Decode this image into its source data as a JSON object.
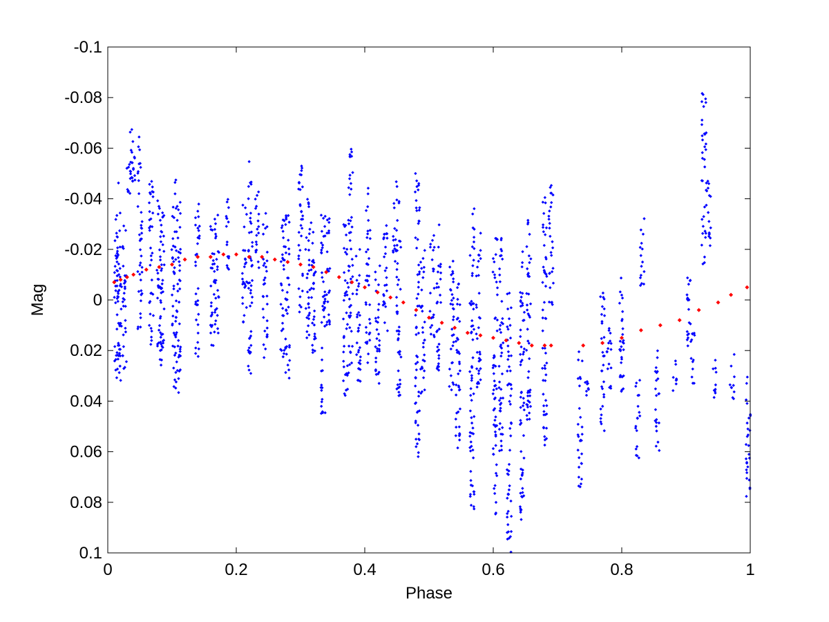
{
  "chart_data": {
    "type": "scatter",
    "title": "",
    "xlabel": "Phase",
    "ylabel": "Mag",
    "xlim": [
      0,
      1
    ],
    "ylim": [
      -0.1,
      0.1
    ],
    "y_reversed": true,
    "grid": false,
    "legend": "none",
    "x_ticks": [
      0,
      0.2,
      0.4,
      0.6,
      0.8,
      1
    ],
    "x_tick_labels": [
      "0",
      "0.2",
      "0.4",
      "0.6",
      "0.8",
      "1"
    ],
    "y_ticks": [
      -0.1,
      -0.08,
      -0.06,
      -0.04,
      -0.02,
      0,
      0.02,
      0.04,
      0.06,
      0.08,
      0.1
    ],
    "y_tick_labels": [
      "-0.1",
      "-0.08",
      "-0.06",
      "-0.04",
      "-0.02",
      "0",
      "0.02",
      "0.04",
      "0.06",
      "0.08",
      "0.1"
    ],
    "observations": {
      "color": "#0000ff",
      "clusters": [
        [
          0.013,
          -0.034,
          0.031
        ],
        [
          0.018,
          -0.047,
          0.032
        ],
        [
          0.026,
          -0.03,
          0.028
        ],
        [
          0.033,
          -0.06,
          -0.042
        ],
        [
          0.037,
          -0.07,
          -0.046
        ],
        [
          0.04,
          -0.06,
          -0.045
        ],
        [
          0.05,
          -0.065,
          0.012
        ],
        [
          0.068,
          -0.05,
          0.02
        ],
        [
          0.08,
          -0.04,
          0.028
        ],
        [
          0.085,
          -0.035,
          0.025
        ],
        [
          0.103,
          -0.049,
          0.035
        ],
        [
          0.11,
          -0.04,
          0.039
        ],
        [
          0.14,
          -0.038,
          0.026
        ],
        [
          0.163,
          -0.031,
          0.023
        ],
        [
          0.17,
          -0.035,
          0.015
        ],
        [
          0.185,
          -0.042,
          -0.011
        ],
        [
          0.213,
          -0.04,
          0.01
        ],
        [
          0.222,
          -0.055,
          0.032
        ],
        [
          0.232,
          -0.045,
          -0.011
        ],
        [
          0.245,
          -0.035,
          0.025
        ],
        [
          0.272,
          -0.032,
          0.024
        ],
        [
          0.28,
          -0.035,
          0.032
        ],
        [
          0.3,
          -0.058,
          0.005
        ],
        [
          0.311,
          -0.04,
          0.02
        ],
        [
          0.32,
          -0.032,
          0.025
        ],
        [
          0.335,
          -0.034,
          0.055
        ],
        [
          0.343,
          -0.033,
          0.01
        ],
        [
          0.37,
          -0.03,
          0.04
        ],
        [
          0.378,
          -0.062,
          0.03
        ],
        [
          0.39,
          -0.024,
          0.035
        ],
        [
          0.405,
          -0.046,
          0.025
        ],
        [
          0.42,
          -0.02,
          0.035
        ],
        [
          0.432,
          -0.032,
          0.02
        ],
        [
          0.447,
          -0.048,
          -0.015
        ],
        [
          0.453,
          -0.04,
          0.038
        ],
        [
          0.482,
          -0.052,
          0.062
        ],
        [
          0.49,
          -0.02,
          0.038
        ],
        [
          0.505,
          -0.028,
          0.015
        ],
        [
          0.515,
          -0.03,
          0.028
        ],
        [
          0.535,
          -0.02,
          0.042
        ],
        [
          0.545,
          -0.015,
          0.06
        ],
        [
          0.567,
          -0.037,
          0.086
        ],
        [
          0.577,
          -0.028,
          0.035
        ],
        [
          0.603,
          -0.025,
          0.087
        ],
        [
          0.612,
          -0.026,
          0.06
        ],
        [
          0.625,
          -0.005,
          0.1
        ],
        [
          0.645,
          -0.02,
          0.088
        ],
        [
          0.655,
          -0.035,
          0.05
        ],
        [
          0.68,
          -0.045,
          0.058
        ],
        [
          0.69,
          -0.049,
          0.002
        ],
        [
          0.735,
          0.02,
          0.074
        ],
        [
          0.745,
          0.03,
          0.038
        ],
        [
          0.77,
          -0.005,
          0.052
        ],
        [
          0.78,
          0.01,
          0.04
        ],
        [
          0.8,
          -0.018,
          0.037
        ],
        [
          0.825,
          0.03,
          0.064
        ],
        [
          0.832,
          -0.034,
          -0.005
        ],
        [
          0.855,
          0.02,
          0.062
        ],
        [
          0.883,
          0.022,
          0.038
        ],
        [
          0.905,
          -0.017,
          0.02
        ],
        [
          0.91,
          0.01,
          0.035
        ],
        [
          0.928,
          -0.082,
          -0.014
        ],
        [
          0.935,
          -0.052,
          -0.02
        ],
        [
          0.945,
          0.022,
          0.042
        ],
        [
          0.972,
          0.02,
          0.04
        ],
        [
          0.997,
          0.028,
          0.079
        ]
      ]
    },
    "model_fit": {
      "color": "#ff0000",
      "x": [
        0.01,
        0.02,
        0.03,
        0.04,
        0.06,
        0.08,
        0.1,
        0.12,
        0.14,
        0.16,
        0.18,
        0.2,
        0.22,
        0.24,
        0.26,
        0.28,
        0.3,
        0.32,
        0.34,
        0.36,
        0.38,
        0.4,
        0.42,
        0.44,
        0.46,
        0.48,
        0.5,
        0.52,
        0.54,
        0.56,
        0.58,
        0.6,
        0.62,
        0.64,
        0.66,
        0.68,
        0.69,
        0.74,
        0.77,
        0.8,
        0.83,
        0.86,
        0.89,
        0.92,
        0.95,
        0.97,
        0.995
      ],
      "y": [
        -0.007,
        -0.008,
        -0.009,
        -0.01,
        -0.012,
        -0.013,
        -0.014,
        -0.016,
        -0.017,
        -0.017,
        -0.018,
        -0.018,
        -0.017,
        -0.017,
        -0.016,
        -0.015,
        -0.014,
        -0.013,
        -0.011,
        -0.009,
        -0.007,
        -0.005,
        -0.003,
        -0.001,
        0.001,
        0.004,
        0.007,
        0.009,
        0.011,
        0.013,
        0.014,
        0.015,
        0.016,
        0.017,
        0.018,
        0.018,
        0.018,
        0.018,
        0.017,
        0.015,
        0.012,
        0.01,
        0.008,
        0.004,
        0.001,
        -0.002,
        -0.005
      ]
    }
  }
}
